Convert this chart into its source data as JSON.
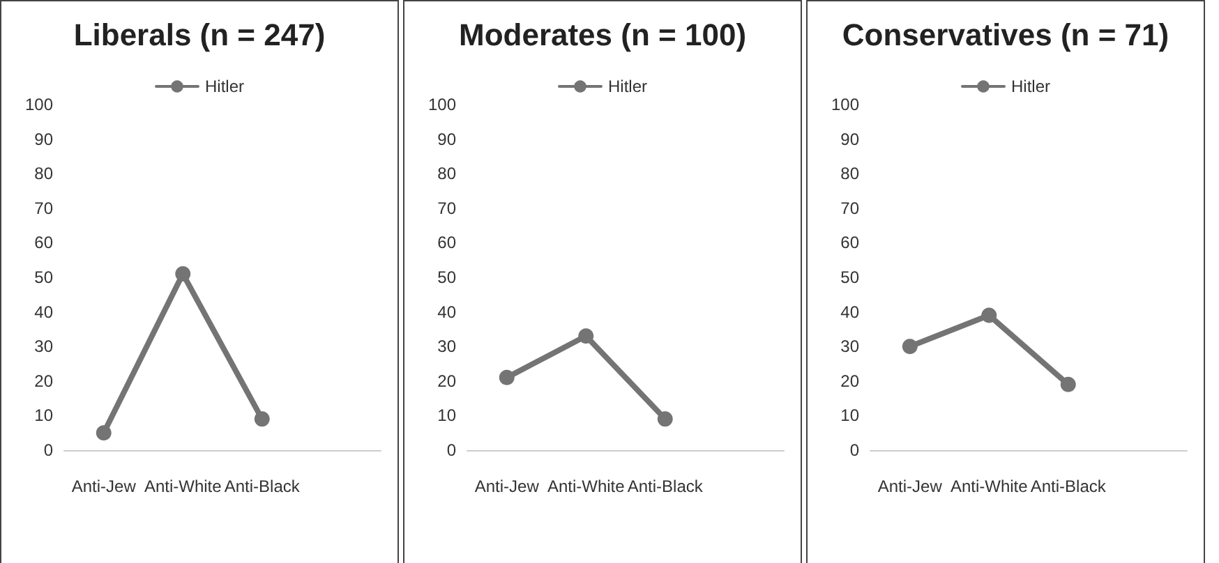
{
  "chart_data": [
    {
      "type": "line",
      "title": "Liberals (n = 247)",
      "categories": [
        "Anti-Jew",
        "Anti-White",
        "Anti-Black",
        null
      ],
      "series": [
        {
          "name": "Hitler",
          "color": "#747474",
          "values": [
            5,
            51,
            9,
            null
          ]
        }
      ],
      "ylim": [
        0,
        100
      ],
      "yticks": [
        0,
        10,
        20,
        30,
        40,
        50,
        60,
        70,
        80,
        90,
        100
      ],
      "grid": false,
      "legend": "top",
      "marker": "circle",
      "line_style": "solid"
    },
    {
      "type": "line",
      "title": "Moderates (n = 100)",
      "categories": [
        "Anti-Jew",
        "Anti-White",
        "Anti-Black",
        null
      ],
      "series": [
        {
          "name": "Hitler",
          "color": "#747474",
          "values": [
            21,
            33,
            9,
            null
          ]
        }
      ],
      "ylim": [
        0,
        100
      ],
      "yticks": [
        0,
        10,
        20,
        30,
        40,
        50,
        60,
        70,
        80,
        90,
        100
      ],
      "grid": false,
      "legend": "top",
      "marker": "circle",
      "line_style": "solid"
    },
    {
      "type": "line",
      "title": "Conservatives (n = 71)",
      "categories": [
        "Anti-Jew",
        "Anti-White",
        "Anti-Black",
        null
      ],
      "series": [
        {
          "name": "Hitler",
          "color": "#747474",
          "values": [
            30,
            39,
            19,
            null
          ]
        }
      ],
      "ylim": [
        0,
        100
      ],
      "yticks": [
        0,
        10,
        20,
        30,
        40,
        50,
        60,
        70,
        80,
        90,
        100
      ],
      "grid": false,
      "legend": "top",
      "marker": "circle",
      "line_style": "solid"
    }
  ]
}
